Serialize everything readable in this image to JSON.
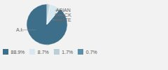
{
  "chart_data": {
    "type": "pie",
    "categories": [
      "A.I.",
      "ASIAN",
      "BLACK",
      "WHITE"
    ],
    "values": [
      88.9,
      8.7,
      1.7,
      0.7
    ],
    "value_labels": [
      "88.9%",
      "8.7%",
      "1.7%",
      "0.7%"
    ],
    "colors": [
      "#3d6e8a",
      "#d8e8f0",
      "#b8cfd8",
      "#5a8fa8"
    ],
    "legend": "lower left"
  }
}
